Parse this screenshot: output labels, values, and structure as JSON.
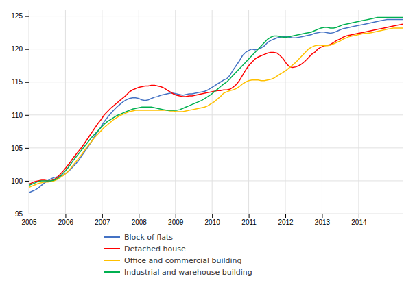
{
  "chart_data": {
    "type": "line",
    "x": [
      2005.0,
      2005.0857,
      2005.1714,
      2005.2571,
      2005.3429,
      2005.4286,
      2005.5143,
      2005.6,
      2005.6857,
      2005.7714,
      2005.8571,
      2005.9429,
      2006.0286,
      2006.1143,
      2006.2,
      2006.2857,
      2006.3714,
      2006.4571,
      2006.5429,
      2006.6286,
      2006.7143,
      2006.8,
      2006.8857,
      2006.9714,
      2007.0571,
      2007.1429,
      2007.2286,
      2007.3143,
      2007.4,
      2007.4857,
      2007.5714,
      2007.6571,
      2007.7429,
      2007.8286,
      2007.9143,
      2008.0,
      2008.0857,
      2008.1714,
      2008.2571,
      2008.3429,
      2008.4286,
      2008.5143,
      2008.6,
      2008.6857,
      2008.7714,
      2008.8571,
      2008.9429,
      2009.0286,
      2009.1143,
      2009.2,
      2009.2857,
      2009.3714,
      2009.4571,
      2009.5429,
      2009.6286,
      2009.7143,
      2009.8,
      2009.8857,
      2009.9714,
      2010.0571,
      2010.1429,
      2010.2286,
      2010.3143,
      2010.4,
      2010.4857,
      2010.5714,
      2010.6571,
      2010.7429,
      2010.8286,
      2010.9143,
      2011.0,
      2011.0857,
      2011.1714,
      2011.2571,
      2011.3429,
      2011.4286,
      2011.5143,
      2011.6,
      2011.6857,
      2011.7714,
      2011.8571,
      2011.9429,
      2012.0286,
      2012.1143,
      2012.2,
      2012.2857,
      2012.3714,
      2012.4571,
      2012.5429,
      2012.6286,
      2012.7143,
      2012.8,
      2012.8857,
      2012.9714,
      2013.0571,
      2013.1429,
      2013.2286,
      2013.3143,
      2013.4,
      2013.4857,
      2013.5714,
      2013.6571,
      2013.7429,
      2013.8286,
      2013.9143,
      2014.0,
      2014.0857,
      2014.1714,
      2014.2571,
      2014.3429,
      2014.4286,
      2014.5143,
      2014.6,
      2014.6857,
      2014.7714,
      2014.8571,
      2014.9429,
      2015.0286,
      2015.1143,
      2015.2
    ],
    "xlim": [
      2005.0,
      2015.2
    ],
    "xticks": [
      2005,
      2006,
      2007,
      2008,
      2009,
      2010,
      2011,
      2012,
      2013,
      2014
    ],
    "ylim": [
      95,
      126
    ],
    "yticks": [
      95,
      100,
      105,
      110,
      115,
      120,
      125
    ],
    "grid": true,
    "legend": "bottom",
    "series": [
      {
        "name": "Block of flats",
        "color": "#4472c4",
        "values": [
          98.2,
          98.4,
          98.6,
          98.9,
          99.3,
          99.7,
          100.0,
          100.3,
          100.5,
          100.6,
          100.7,
          100.9,
          101.2,
          101.6,
          102.1,
          102.6,
          103.2,
          103.9,
          104.6,
          105.3,
          106.0,
          106.8,
          107.5,
          108.2,
          109.0,
          109.6,
          110.2,
          110.7,
          111.2,
          111.6,
          112.0,
          112.3,
          112.5,
          112.6,
          112.6,
          112.5,
          112.3,
          112.2,
          112.3,
          112.5,
          112.7,
          112.8,
          113.0,
          113.1,
          113.2,
          113.3,
          113.3,
          113.2,
          113.1,
          113.0,
          113.1,
          113.2,
          113.2,
          113.3,
          113.4,
          113.5,
          113.6,
          113.8,
          114.1,
          114.4,
          114.7,
          115.0,
          115.3,
          115.5,
          116.0,
          116.8,
          117.5,
          118.2,
          119.0,
          119.5,
          119.8,
          120.0,
          119.9,
          120.0,
          120.2,
          120.5,
          121.0,
          121.3,
          121.5,
          121.7,
          121.8,
          121.9,
          121.9,
          121.8,
          121.7,
          121.7,
          121.8,
          121.9,
          122.0,
          122.1,
          122.2,
          122.4,
          122.5,
          122.6,
          122.6,
          122.5,
          122.4,
          122.5,
          122.7,
          122.9,
          123.1,
          123.2,
          123.3,
          123.4,
          123.5,
          123.6,
          123.7,
          123.8,
          123.9,
          124.0,
          124.1,
          124.2,
          124.3,
          124.4,
          124.5,
          124.5,
          124.5,
          124.5,
          124.5,
          124.5
        ]
      },
      {
        "name": "Detached house",
        "color": "#ff0000",
        "values": [
          99.5,
          99.7,
          99.9,
          100.0,
          100.1,
          100.1,
          100.0,
          100.0,
          100.2,
          100.5,
          101.0,
          101.5,
          102.1,
          102.7,
          103.4,
          104.0,
          104.6,
          105.2,
          105.9,
          106.6,
          107.3,
          108.0,
          108.7,
          109.3,
          110.0,
          110.5,
          111.0,
          111.4,
          111.8,
          112.2,
          112.6,
          113.0,
          113.5,
          113.8,
          114.0,
          114.2,
          114.3,
          114.4,
          114.4,
          114.5,
          114.5,
          114.4,
          114.3,
          114.1,
          113.8,
          113.5,
          113.2,
          113.0,
          112.9,
          112.8,
          112.8,
          112.9,
          112.9,
          113.0,
          113.1,
          113.2,
          113.3,
          113.4,
          113.5,
          113.6,
          113.7,
          113.7,
          113.8,
          113.8,
          113.9,
          114.2,
          114.6,
          115.2,
          116.0,
          116.8,
          117.5,
          118.0,
          118.5,
          118.8,
          119.0,
          119.2,
          119.4,
          119.5,
          119.5,
          119.4,
          119.0,
          118.5,
          117.8,
          117.3,
          117.2,
          117.3,
          117.5,
          117.8,
          118.2,
          118.7,
          119.2,
          119.5,
          120.0,
          120.3,
          120.5,
          120.6,
          120.7,
          121.0,
          121.3,
          121.5,
          121.8,
          122.0,
          122.1,
          122.2,
          122.3,
          122.4,
          122.5,
          122.6,
          122.7,
          122.8,
          122.9,
          123.0,
          123.1,
          123.2,
          123.3,
          123.4,
          123.5,
          123.6,
          123.7,
          123.8
        ]
      },
      {
        "name": "Office and commercial building",
        "color": "#ffc000",
        "values": [
          99.0,
          99.2,
          99.4,
          99.6,
          99.7,
          99.8,
          99.8,
          99.9,
          100.0,
          100.2,
          100.5,
          100.8,
          101.2,
          101.7,
          102.3,
          102.9,
          103.5,
          104.1,
          104.8,
          105.4,
          106.0,
          106.6,
          107.1,
          107.6,
          108.1,
          108.5,
          108.9,
          109.3,
          109.6,
          109.9,
          110.1,
          110.3,
          110.5,
          110.6,
          110.7,
          110.7,
          110.7,
          110.7,
          110.7,
          110.7,
          110.7,
          110.7,
          110.7,
          110.7,
          110.7,
          110.6,
          110.6,
          110.5,
          110.5,
          110.5,
          110.6,
          110.7,
          110.8,
          110.9,
          111.0,
          111.1,
          111.2,
          111.4,
          111.7,
          112.0,
          112.4,
          112.8,
          113.3,
          113.5,
          113.7,
          113.8,
          114.0,
          114.3,
          114.7,
          115.0,
          115.2,
          115.3,
          115.3,
          115.3,
          115.2,
          115.2,
          115.3,
          115.4,
          115.6,
          115.9,
          116.2,
          116.5,
          116.8,
          117.2,
          117.6,
          118.0,
          118.5,
          119.0,
          119.5,
          120.0,
          120.3,
          120.5,
          120.6,
          120.6,
          120.5,
          120.5,
          120.6,
          120.8,
          121.0,
          121.2,
          121.5,
          121.7,
          121.9,
          122.0,
          122.1,
          122.2,
          122.3,
          122.4,
          122.4,
          122.5,
          122.6,
          122.7,
          122.8,
          122.9,
          123.0,
          123.1,
          123.2,
          123.2,
          123.2,
          123.2
        ]
      },
      {
        "name": "Industrial and warehouse building",
        "color": "#00b050",
        "values": [
          99.3,
          99.5,
          99.7,
          99.9,
          100.0,
          100.0,
          100.0,
          100.0,
          100.1,
          100.3,
          100.7,
          101.2,
          101.7,
          102.3,
          103.0,
          103.6,
          104.2,
          104.8,
          105.4,
          106.0,
          106.6,
          107.1,
          107.6,
          108.1,
          108.6,
          109.0,
          109.3,
          109.6,
          109.9,
          110.1,
          110.3,
          110.5,
          110.7,
          110.9,
          111.0,
          111.1,
          111.2,
          111.2,
          111.2,
          111.2,
          111.1,
          111.0,
          110.9,
          110.8,
          110.7,
          110.7,
          110.7,
          110.7,
          110.8,
          111.0,
          111.2,
          111.4,
          111.6,
          111.8,
          112.0,
          112.2,
          112.5,
          112.8,
          113.1,
          113.5,
          113.9,
          114.3,
          114.7,
          115.0,
          115.5,
          116.0,
          116.5,
          117.0,
          117.5,
          118.0,
          118.5,
          119.0,
          119.5,
          120.0,
          120.5,
          121.0,
          121.5,
          121.8,
          122.0,
          122.0,
          121.9,
          121.8,
          121.8,
          121.9,
          122.0,
          122.1,
          122.2,
          122.3,
          122.4,
          122.5,
          122.6,
          122.8,
          123.0,
          123.2,
          123.3,
          123.3,
          123.2,
          123.2,
          123.3,
          123.5,
          123.7,
          123.8,
          123.9,
          124.0,
          124.1,
          124.2,
          124.3,
          124.4,
          124.5,
          124.6,
          124.7,
          124.8,
          124.8,
          124.8,
          124.8,
          124.8,
          124.8,
          124.8,
          124.8,
          124.8
        ]
      }
    ]
  }
}
